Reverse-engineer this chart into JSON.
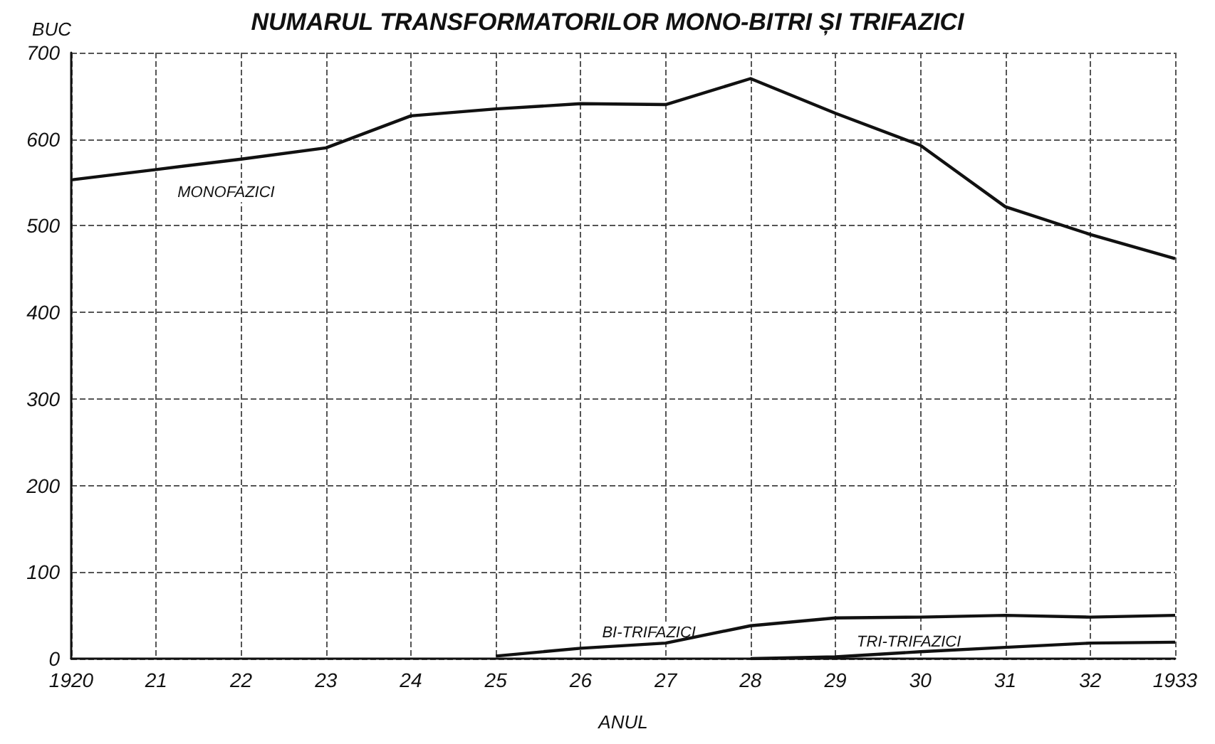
{
  "chart_data": {
    "type": "line",
    "title": "NUMARUL TRANSFORMATORILOR MONO-BITRI ȘI TRIFAZICI",
    "xlabel": "ANUL",
    "ylabel": "BUC",
    "categories": [
      "1920",
      "21",
      "22",
      "23",
      "24",
      "25",
      "26",
      "27",
      "28",
      "29",
      "30",
      "31",
      "32",
      "1933"
    ],
    "series": [
      {
        "name": "MONOFAZICI",
        "color": "#111111",
        "values": [
          553,
          565,
          577,
          590,
          627,
          635,
          641,
          640,
          670,
          630,
          593,
          522,
          490,
          462
        ]
      },
      {
        "name": "BI-TRIFAZICI",
        "color": "#111111",
        "values": [
          null,
          null,
          null,
          null,
          null,
          3,
          12,
          18,
          38,
          47,
          48,
          50,
          48,
          50
        ]
      },
      {
        "name": "TRI-TRIFAZICI",
        "color": "#111111",
        "values": [
          null,
          null,
          null,
          null,
          null,
          null,
          null,
          null,
          0,
          2,
          8,
          13,
          18,
          19
        ]
      }
    ],
    "ylim": [
      0,
      700
    ],
    "yticks": [
      0,
      100,
      200,
      300,
      400,
      500,
      600,
      700
    ],
    "grid": true,
    "legend": false,
    "marker": "none",
    "line_style": "solid"
  }
}
